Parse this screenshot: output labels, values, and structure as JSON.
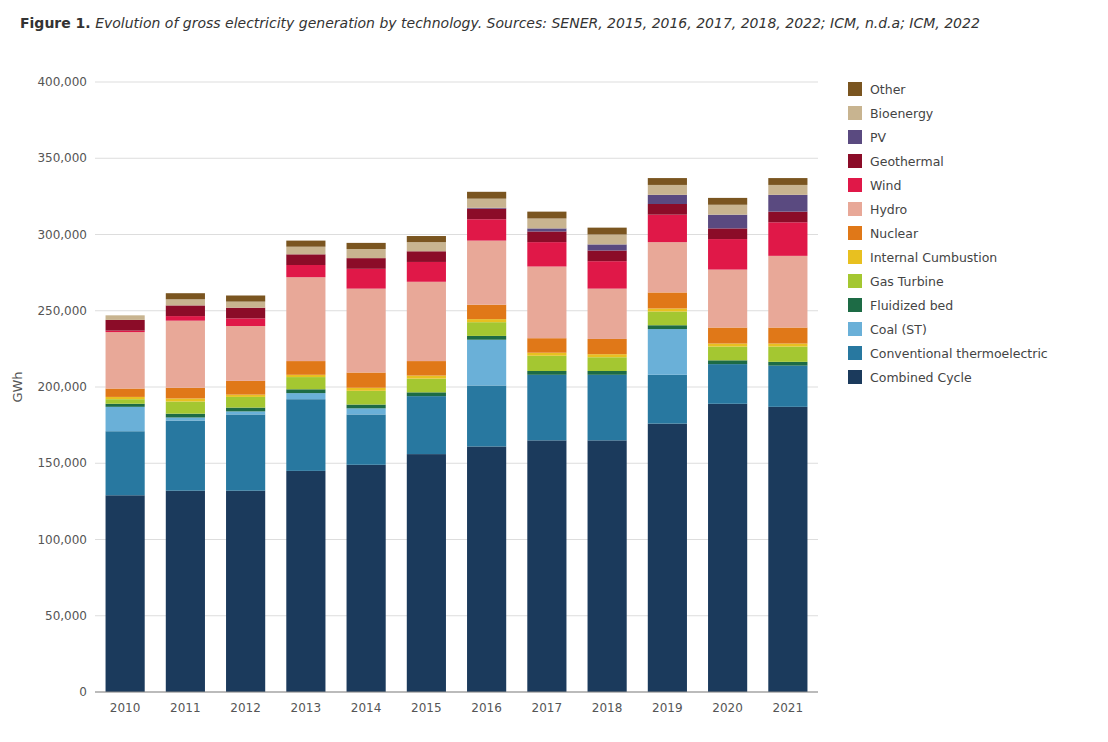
{
  "chart_data": {
    "type": "bar",
    "stacked": true,
    "title": "Figure 1.",
    "subtitle": "Evolution of gross electricity generation by technology. Sources: SENER, 2015, 2016, 2017, 2018, 2022; ICM, n.d.a; ICM, 2022",
    "y_label": "GWh",
    "categories": [
      2010,
      2011,
      2012,
      2013,
      2014,
      2015,
      2016,
      2017,
      2018,
      2019,
      2020,
      2021
    ],
    "series": [
      {
        "name": "Combined Cycle",
        "color": "#1b3a5c",
        "values": [
          129000,
          132000,
          132000,
          145000,
          149000,
          156000,
          161000,
          165000,
          165000,
          176000,
          189000,
          187000
        ]
      },
      {
        "name": "Conventional thermoelectric",
        "color": "#2878a0",
        "values": [
          42000,
          46000,
          50000,
          47000,
          33000,
          38000,
          40000,
          43000,
          43000,
          32000,
          26000,
          27000
        ]
      },
      {
        "name": "Coal (ST)",
        "color": "#6ab0d8",
        "values": [
          16000,
          2000,
          2000,
          4000,
          4000,
          0,
          30000,
          0,
          0,
          30000,
          0,
          0
        ]
      },
      {
        "name": "Fluidized bed",
        "color": "#1d6b45",
        "values": [
          2000,
          2500,
          2500,
          2500,
          2500,
          2500,
          2500,
          2500,
          2500,
          2500,
          2500,
          2500
        ]
      },
      {
        "name": "Gas Turbine",
        "color": "#a4c731",
        "values": [
          3000,
          8000,
          7000,
          8000,
          9000,
          9000,
          9000,
          10000,
          9000,
          9000,
          9000,
          10000
        ]
      },
      {
        "name": "Internal Cumbustion",
        "color": "#e8c020",
        "values": [
          1500,
          2000,
          1500,
          1500,
          2000,
          2000,
          2000,
          2000,
          2000,
          2000,
          2000,
          2000
        ]
      },
      {
        "name": "Nuclear",
        "color": "#e07818",
        "values": [
          5500,
          7000,
          9000,
          9000,
          10000,
          9500,
          9500,
          9500,
          10000,
          10500,
          10500,
          10500
        ]
      },
      {
        "name": "Hydro",
        "color": "#e8a898",
        "values": [
          37000,
          44000,
          36000,
          55000,
          55000,
          52000,
          42000,
          47000,
          33000,
          33000,
          38000,
          47000
        ]
      },
      {
        "name": "Wind",
        "color": "#e01848",
        "values": [
          1000,
          3000,
          5000,
          8000,
          13000,
          13000,
          14000,
          16000,
          18000,
          18000,
          20000,
          22000
        ]
      },
      {
        "name": "Geothermal",
        "color": "#8b0c28",
        "values": [
          7000,
          7000,
          7000,
          7000,
          7000,
          7000,
          7000,
          7000,
          7000,
          7000,
          7000,
          7000
        ]
      },
      {
        "name": "PV",
        "color": "#5a4a80",
        "values": [
          0,
          0,
          0,
          0,
          0,
          0,
          500,
          2000,
          4000,
          6000,
          9000,
          11000
        ]
      },
      {
        "name": "Bioenergy",
        "color": "#c8b490",
        "values": [
          3000,
          4000,
          4000,
          5000,
          6000,
          6000,
          6000,
          6500,
          6500,
          6500,
          6500,
          6500
        ]
      },
      {
        "name": "Other",
        "color": "#7a5520",
        "values": [
          0,
          4000,
          4000,
          4000,
          4000,
          4000,
          4500,
          4500,
          4500,
          4500,
          4500,
          4500
        ]
      }
    ],
    "ylim": [
      0,
      400000
    ],
    "yticks": [
      0,
      {
        "value": 50000,
        "label": "50,000"
      },
      {
        "value": 100000,
        "label": "100,000"
      },
      {
        "value": 150000,
        "label": "150,000"
      },
      {
        "value": 200000,
        "label": "200,000"
      },
      {
        "value": 250000,
        "label": "250,000"
      },
      {
        "value": 300000,
        "label": "300,000"
      },
      {
        "value": 350000,
        "label": "350,000"
      },
      {
        "value": 400000,
        "label": "400,000"
      }
    ],
    "grid": true,
    "legend": "right"
  }
}
